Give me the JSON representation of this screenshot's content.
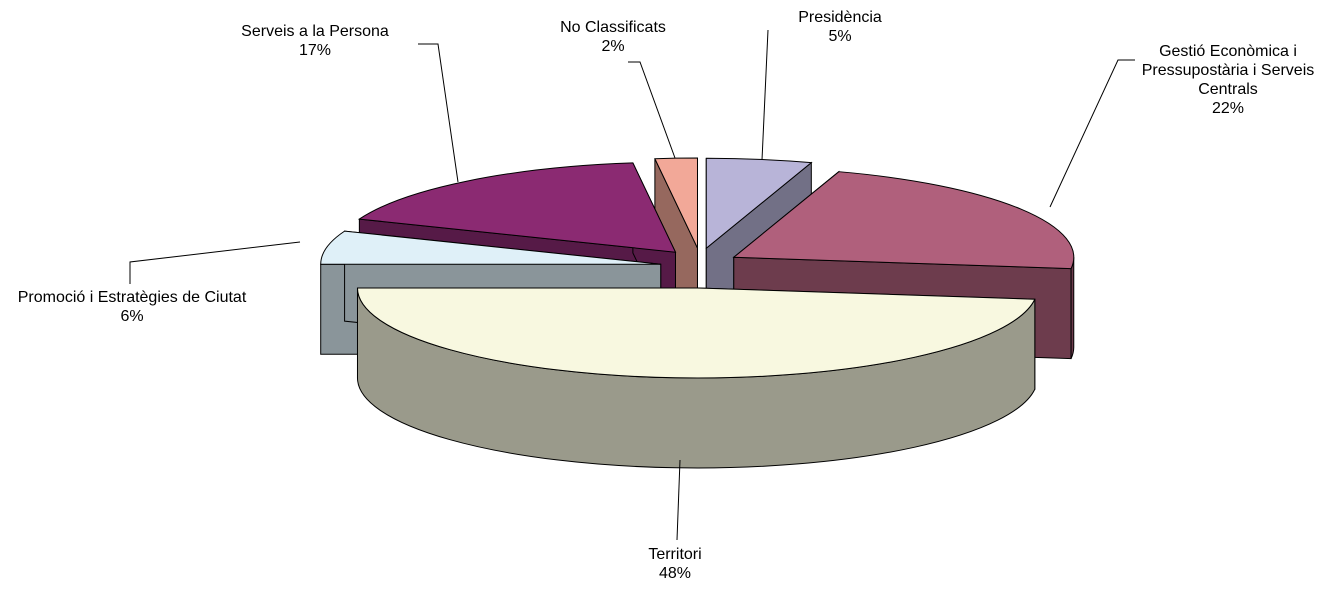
{
  "chart_data": {
    "type": "pie",
    "categories": [
      "Presidència",
      "Gestió Econòmica i Pressupostària i Serveis Centrals",
      "Territori",
      "Promoció i Estratègies de Ciutat",
      "Serveis a la Persona",
      "No Classificats"
    ],
    "values": [
      5,
      22,
      48,
      6,
      17,
      2
    ],
    "value_labels": [
      "5%",
      "22%",
      "48%",
      "6%",
      "17%",
      "2%"
    ],
    "colors": [
      "#b8b4d8",
      "#b0607c",
      "#f8f8e0",
      "#dff0f8",
      "#8b2a72",
      "#f2a898"
    ]
  }
}
